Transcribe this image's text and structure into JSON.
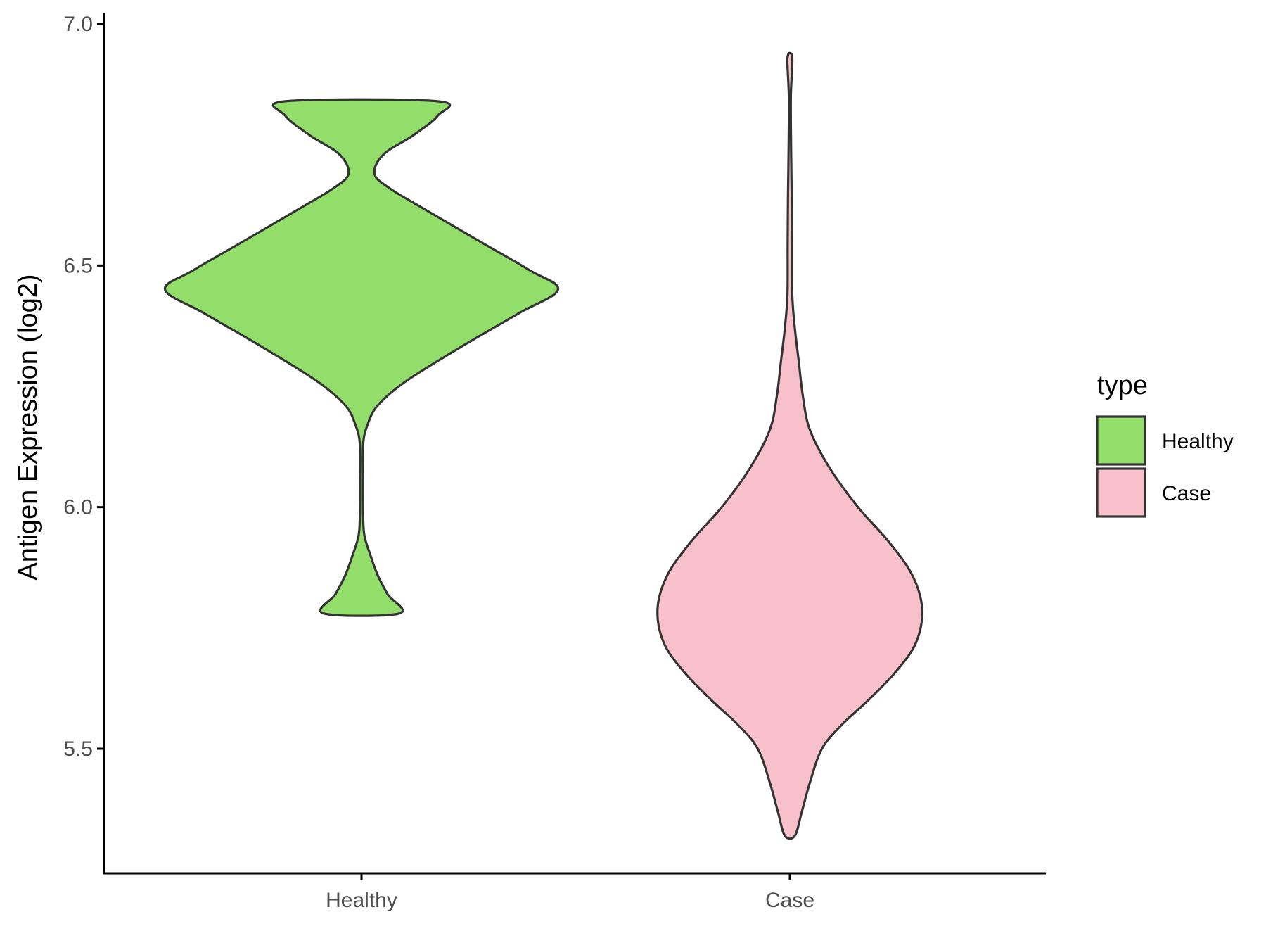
{
  "chart_data": {
    "type": "violin",
    "title": "",
    "xlabel": "",
    "ylabel": "Antigen Expression (log2)",
    "ylim": [
      5.27,
      7.02
    ],
    "yticks": [
      "5.5",
      "6.0",
      "6.5",
      "7.0"
    ],
    "categories": [
      "Healthy",
      "Case"
    ],
    "legend": {
      "title": "type",
      "placement": "right",
      "entries": [
        "Healthy",
        "Case"
      ]
    },
    "grid": false,
    "colors": {
      "Healthy": "#93dd6a",
      "Case": "#f8c0cb",
      "outline": "#333333",
      "axis": "#000000"
    },
    "series": [
      {
        "name": "Healthy",
        "min": 5.78,
        "max": 6.84,
        "density_profile": [
          [
            5.78,
            0.19
          ],
          [
            5.82,
            0.13
          ],
          [
            5.86,
            0.08
          ],
          [
            5.9,
            0.045
          ],
          [
            5.94,
            0.015
          ],
          [
            5.98,
            0.008
          ],
          [
            6.05,
            0.007
          ],
          [
            6.13,
            0.008
          ],
          [
            6.17,
            0.03
          ],
          [
            6.21,
            0.08
          ],
          [
            6.26,
            0.22
          ],
          [
            6.33,
            0.49
          ],
          [
            6.4,
            0.78
          ],
          [
            6.45,
            0.98
          ],
          [
            6.49,
            0.84
          ],
          [
            6.55,
            0.59
          ],
          [
            6.62,
            0.3
          ],
          [
            6.66,
            0.14
          ],
          [
            6.69,
            0.065
          ],
          [
            6.73,
            0.11
          ],
          [
            6.77,
            0.26
          ],
          [
            6.81,
            0.38
          ],
          [
            6.84,
            0.38
          ]
        ]
      },
      {
        "name": "Case",
        "min": 5.32,
        "max": 6.93,
        "density_profile": [
          [
            5.32,
            0.025
          ],
          [
            5.37,
            0.06
          ],
          [
            5.43,
            0.1
          ],
          [
            5.5,
            0.16
          ],
          [
            5.55,
            0.26
          ],
          [
            5.6,
            0.39
          ],
          [
            5.66,
            0.53
          ],
          [
            5.72,
            0.63
          ],
          [
            5.79,
            0.66
          ],
          [
            5.86,
            0.61
          ],
          [
            5.93,
            0.49
          ],
          [
            6.0,
            0.34
          ],
          [
            6.08,
            0.2
          ],
          [
            6.16,
            0.1
          ],
          [
            6.23,
            0.065
          ],
          [
            6.3,
            0.045
          ],
          [
            6.37,
            0.025
          ],
          [
            6.44,
            0.012
          ],
          [
            6.55,
            0.011
          ],
          [
            6.65,
            0.009
          ],
          [
            6.75,
            0.006
          ],
          [
            6.85,
            0.005
          ],
          [
            6.93,
            0.012
          ]
        ]
      }
    ]
  }
}
